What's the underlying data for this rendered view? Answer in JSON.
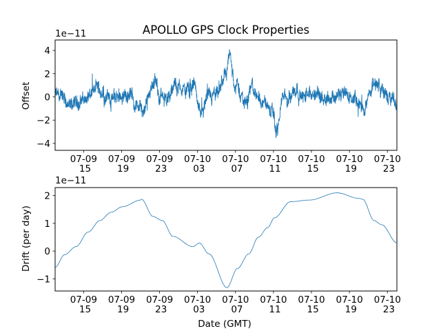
{
  "chart_data": [
    {
      "type": "line",
      "title": "APOLLO GPS Clock Properties",
      "xlabel": "",
      "ylabel": "Offset",
      "y_scale_label": "1e−11",
      "x_unit": "hours since 07-09 12:00 GMT",
      "xlim": [
        0,
        36
      ],
      "ylim": [
        -4.6,
        4.9
      ],
      "y_ticks": [
        -4,
        -2,
        0,
        2,
        4
      ],
      "y_tick_labels": [
        "−4",
        "−2",
        "0",
        "2",
        "4"
      ],
      "x_ticks": [
        3,
        7,
        11,
        15,
        19,
        23,
        27,
        31,
        35
      ],
      "x_tick_labels": [
        "07-09 15",
        "07-09 19",
        "07-09 23",
        "07-10 03",
        "07-10 07",
        "07-10 11",
        "07-10 15",
        "07-10 19",
        "07-10 23"
      ],
      "color": "#1f77b4",
      "series": [
        {
          "name": "Offset",
          "x": [
            0,
            1,
            1.5,
            2,
            3,
            4,
            4.4,
            5,
            6,
            7,
            8,
            9,
            9.3,
            10,
            10.4,
            11,
            12,
            12.7,
            13,
            14,
            14.7,
            15,
            15.5,
            16,
            17,
            18,
            18.3,
            19,
            20,
            20.7,
            21,
            22,
            23,
            23.3,
            24,
            25,
            25.4,
            26,
            27,
            28,
            29,
            30,
            31,
            32,
            32.5,
            33,
            33.8,
            34,
            35,
            36
          ],
          "y": [
            0.2,
            -0.4,
            -1.0,
            -0.6,
            -0.2,
            0.3,
            0.9,
            0.3,
            -0.2,
            0.2,
            0.1,
            -1.0,
            -1.7,
            0.4,
            1.4,
            0.2,
            -0.1,
            1.0,
            0.8,
            0.5,
            1.2,
            -0.6,
            -1.6,
            -0.2,
            0.0,
            2.0,
            3.6,
            1.0,
            -0.4,
            0.8,
            0.3,
            -0.4,
            -1.6,
            -3.0,
            -0.2,
            0.4,
            0.8,
            0.0,
            0.2,
            0.1,
            0.0,
            0.2,
            0.0,
            -0.6,
            -1.5,
            0.4,
            1.3,
            1.0,
            0.0,
            -0.6
          ]
        }
      ]
    },
    {
      "type": "line",
      "title": "",
      "xlabel": "Date (GMT)",
      "ylabel": "Drift (per day)",
      "y_scale_label": "1e−11",
      "x_unit": "hours since 07-09 12:00 GMT",
      "xlim": [
        0,
        36
      ],
      "ylim": [
        -1.44,
        2.29
      ],
      "y_ticks": [
        -1,
        0,
        1,
        2
      ],
      "y_tick_labels": [
        "−1",
        "0",
        "1",
        "2"
      ],
      "x_ticks": [
        3,
        7,
        11,
        15,
        19,
        23,
        27,
        31,
        35
      ],
      "x_tick_labels": [
        "07-09 15",
        "07-09 19",
        "07-09 23",
        "07-10 03",
        "07-10 07",
        "07-10 11",
        "07-10 15",
        "07-10 19",
        "07-10 23"
      ],
      "color": "#1f77b4",
      "series": [
        {
          "name": "Drift",
          "x": [
            0,
            1.0,
            2.2,
            3.5,
            4.7,
            5.9,
            7.1,
            9.0,
            9.1,
            10.3,
            11.3,
            12.4,
            14.5,
            15.2,
            16.2,
            18.1,
            19.2,
            20.4,
            21.4,
            22.4,
            23.1,
            24.8,
            26.8,
            29.7,
            32.0,
            32.4,
            33.6,
            34.4,
            36.0
          ],
          "y": [
            -0.59,
            -0.13,
            0.16,
            0.69,
            1.1,
            1.4,
            1.6,
            1.84,
            1.87,
            1.25,
            1.1,
            0.53,
            0.16,
            0.29,
            -0.1,
            -1.32,
            -0.63,
            -0.1,
            0.5,
            0.85,
            1.2,
            1.78,
            1.84,
            2.1,
            1.9,
            1.87,
            1.1,
            0.95,
            0.3
          ]
        }
      ]
    }
  ]
}
